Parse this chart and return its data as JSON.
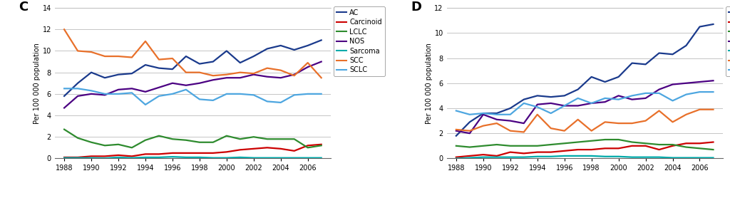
{
  "years": [
    1988,
    1989,
    1990,
    1991,
    1992,
    1993,
    1994,
    1995,
    1996,
    1997,
    1998,
    1999,
    2000,
    2001,
    2002,
    2003,
    2004,
    2005,
    2006,
    2007
  ],
  "panel_C": {
    "label": "C",
    "ylim": [
      0,
      14
    ],
    "yticks": [
      0,
      2,
      4,
      6,
      8,
      10,
      12,
      14
    ],
    "AC": [
      5.8,
      7.0,
      8.0,
      7.5,
      7.8,
      7.9,
      8.7,
      8.4,
      8.3,
      9.5,
      8.8,
      9.0,
      10.0,
      8.9,
      9.5,
      10.2,
      10.5,
      10.1,
      10.5,
      11.0
    ],
    "Carcinoid": [
      0.1,
      0.1,
      0.2,
      0.2,
      0.3,
      0.2,
      0.4,
      0.4,
      0.5,
      0.5,
      0.5,
      0.5,
      0.6,
      0.8,
      0.9,
      1.0,
      0.9,
      0.7,
      1.2,
      1.3
    ],
    "LCLC": [
      2.7,
      1.9,
      1.5,
      1.2,
      1.3,
      1.0,
      1.7,
      2.1,
      1.8,
      1.7,
      1.5,
      1.5,
      2.1,
      1.8,
      2.0,
      1.8,
      1.8,
      1.8,
      1.0,
      1.2
    ],
    "NOS": [
      4.7,
      5.8,
      6.0,
      5.9,
      6.4,
      6.5,
      6.2,
      6.6,
      7.0,
      6.8,
      7.0,
      7.3,
      7.5,
      7.5,
      7.8,
      7.6,
      7.5,
      7.8,
      8.5,
      9.0
    ],
    "Sarcoma": [
      0.05,
      0.05,
      0.05,
      0.02,
      0.1,
      0.05,
      0.1,
      0.1,
      0.15,
      0.1,
      0.1,
      0.05,
      0.05,
      0.1,
      0.05,
      0.05,
      0.05,
      0.05,
      0.05,
      0.05
    ],
    "SCC": [
      12.0,
      10.0,
      9.9,
      9.5,
      9.5,
      9.4,
      10.9,
      9.2,
      9.3,
      8.0,
      8.0,
      7.7,
      7.8,
      8.0,
      7.9,
      8.4,
      8.2,
      7.7,
      8.9,
      7.5
    ],
    "SCLC": [
      6.5,
      6.5,
      6.3,
      6.0,
      6.0,
      6.1,
      5.0,
      5.8,
      6.0,
      6.4,
      5.5,
      5.4,
      6.0,
      6.0,
      5.9,
      5.3,
      5.2,
      5.9,
      6.0,
      6.0
    ]
  },
  "panel_D": {
    "label": "D",
    "ylim": [
      0,
      12
    ],
    "yticks": [
      0,
      2,
      4,
      6,
      8,
      10,
      12
    ],
    "AC": [
      1.8,
      2.9,
      3.6,
      3.6,
      4.0,
      4.7,
      5.0,
      4.9,
      5.0,
      5.5,
      6.5,
      6.1,
      6.5,
      7.6,
      7.5,
      8.4,
      8.3,
      9.0,
      10.5,
      10.7
    ],
    "Carcinoid": [
      0.1,
      0.2,
      0.3,
      0.2,
      0.5,
      0.4,
      0.5,
      0.5,
      0.6,
      0.7,
      0.7,
      0.8,
      0.8,
      1.0,
      1.0,
      0.7,
      1.0,
      1.2,
      1.2,
      1.3
    ],
    "LCLC": [
      1.0,
      0.9,
      1.0,
      1.1,
      1.0,
      1.0,
      1.0,
      1.1,
      1.2,
      1.3,
      1.4,
      1.5,
      1.5,
      1.3,
      1.2,
      1.1,
      1.1,
      0.9,
      0.8,
      0.7
    ],
    "NOS": [
      2.2,
      2.0,
      3.5,
      3.1,
      3.0,
      2.8,
      4.3,
      4.4,
      4.2,
      4.2,
      4.4,
      4.5,
      5.0,
      4.7,
      4.8,
      5.5,
      5.9,
      6.0,
      6.1,
      6.2
    ],
    "Sarcoma": [
      0.0,
      0.05,
      0.1,
      0.1,
      0.1,
      0.1,
      0.15,
      0.15,
      0.2,
      0.2,
      0.2,
      0.15,
      0.15,
      0.1,
      0.1,
      0.1,
      0.05,
      0.05,
      0.05,
      0.05
    ],
    "SCC": [
      2.3,
      2.2,
      2.6,
      2.8,
      2.2,
      2.1,
      3.5,
      2.4,
      2.2,
      3.1,
      2.2,
      2.9,
      2.8,
      2.8,
      3.0,
      3.8,
      2.9,
      3.5,
      3.9,
      3.9
    ],
    "SCLC": [
      3.8,
      3.5,
      3.6,
      3.5,
      3.5,
      4.4,
      4.1,
      3.6,
      4.2,
      4.8,
      4.4,
      4.8,
      4.7,
      5.0,
      5.2,
      5.2,
      4.6,
      5.1,
      5.3,
      5.3
    ]
  },
  "colors": {
    "AC": "#1a3a8c",
    "Carcinoid": "#cc0000",
    "LCLC": "#2e8b2e",
    "NOS": "#4b0082",
    "Sarcoma": "#00aaaa",
    "SCC": "#e8702a",
    "SCLC": "#4da6e0"
  },
  "series_order": [
    "AC",
    "Carcinoid",
    "LCLC",
    "NOS",
    "Sarcoma",
    "SCC",
    "SCLC"
  ],
  "ylabel": "Per 100 000 population",
  "xtick_years": [
    1988,
    1990,
    1992,
    1994,
    1996,
    1998,
    2000,
    2002,
    2004,
    2006
  ],
  "background_color": "#ffffff",
  "grid_color": "#bbbbbb",
  "legend_box_color": "#cccccc"
}
